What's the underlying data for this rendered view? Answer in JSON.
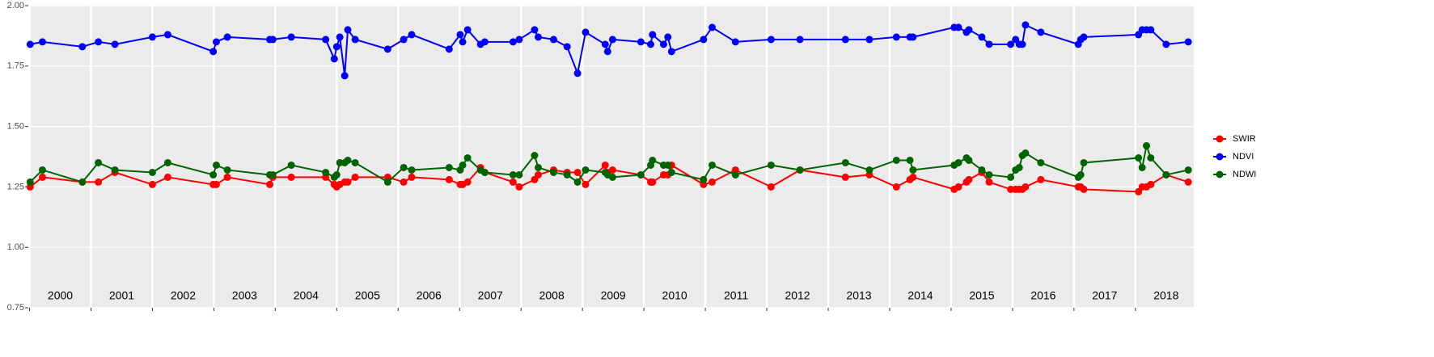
{
  "chart_data": {
    "type": "line",
    "x": [
      2000.01,
      2000.21,
      2000.86,
      2001.12,
      2001.39,
      2002.0,
      2002.25,
      2002.99,
      2003.04,
      2003.22,
      2003.91,
      2003.96,
      2004.26,
      2004.82,
      2004.96,
      2005.0,
      2005.05,
      2005.13,
      2005.18,
      2005.3,
      2005.83,
      2006.09,
      2006.22,
      2006.83,
      2007.01,
      2007.05,
      2007.13,
      2007.34,
      2007.41,
      2007.87,
      2007.97,
      2008.22,
      2008.28,
      2008.53,
      2008.75,
      2008.92,
      2009.05,
      2009.37,
      2009.41,
      2009.49,
      2009.95,
      2010.11,
      2010.14,
      2010.32,
      2010.39,
      2010.45,
      2010.97,
      2011.11,
      2011.49,
      2012.07,
      2012.54,
      2013.28,
      2013.67,
      2014.11,
      2014.33,
      2014.38,
      2015.05,
      2015.12,
      2015.25,
      2015.29,
      2015.5,
      2015.62,
      2015.97,
      2016.05,
      2016.11,
      2016.16,
      2016.21,
      2016.46,
      2017.07,
      2017.11,
      2017.16,
      2018.05,
      2018.11,
      2018.18,
      2018.25,
      2018.5,
      2018.86
    ],
    "series": [
      {
        "name": "SWIR",
        "color": "#ff0000",
        "values": [
          1.25,
          1.29,
          1.27,
          1.27,
          1.31,
          1.26,
          1.29,
          1.26,
          1.26,
          1.29,
          1.26,
          1.29,
          1.29,
          1.29,
          1.26,
          1.25,
          1.26,
          1.27,
          1.27,
          1.29,
          1.29,
          1.27,
          1.29,
          1.28,
          1.26,
          1.26,
          1.27,
          1.33,
          1.31,
          1.27,
          1.25,
          1.28,
          1.3,
          1.32,
          1.31,
          1.31,
          1.26,
          1.34,
          1.31,
          1.32,
          1.3,
          1.27,
          1.27,
          1.3,
          1.3,
          1.34,
          1.26,
          1.27,
          1.32,
          1.25,
          1.32,
          1.29,
          1.3,
          1.25,
          1.28,
          1.29,
          1.24,
          1.25,
          1.27,
          1.28,
          1.31,
          1.27,
          1.24,
          1.24,
          1.24,
          1.24,
          1.25,
          1.28,
          1.25,
          1.25,
          1.24,
          1.23,
          1.25,
          1.25,
          1.26,
          1.3,
          1.27
        ]
      },
      {
        "name": "NDVI",
        "color": "#0000ff",
        "values": [
          1.84,
          1.85,
          1.83,
          1.85,
          1.84,
          1.87,
          1.88,
          1.81,
          1.85,
          1.87,
          1.86,
          1.86,
          1.87,
          1.86,
          1.78,
          1.83,
          1.87,
          1.71,
          1.9,
          1.86,
          1.82,
          1.86,
          1.88,
          1.82,
          1.88,
          1.85,
          1.9,
          1.84,
          1.85,
          1.85,
          1.86,
          1.9,
          1.87,
          1.86,
          1.83,
          1.72,
          1.89,
          1.84,
          1.81,
          1.86,
          1.85,
          1.84,
          1.88,
          1.84,
          1.87,
          1.81,
          1.86,
          1.91,
          1.85,
          1.86,
          1.86,
          1.86,
          1.86,
          1.87,
          1.87,
          1.87,
          1.91,
          1.91,
          1.89,
          1.9,
          1.87,
          1.84,
          1.84,
          1.86,
          1.84,
          1.84,
          1.92,
          1.89,
          1.84,
          1.86,
          1.87,
          1.88,
          1.9,
          1.9,
          1.9,
          1.84,
          1.85
        ]
      },
      {
        "name": "NDWI",
        "color": "#006400",
        "values": [
          1.27,
          1.32,
          1.27,
          1.35,
          1.32,
          1.31,
          1.35,
          1.3,
          1.34,
          1.32,
          1.3,
          1.3,
          1.34,
          1.31,
          1.29,
          1.3,
          1.35,
          1.35,
          1.36,
          1.35,
          1.27,
          1.33,
          1.32,
          1.33,
          1.32,
          1.34,
          1.37,
          1.32,
          1.31,
          1.3,
          1.3,
          1.38,
          1.33,
          1.31,
          1.3,
          1.27,
          1.32,
          1.31,
          1.3,
          1.29,
          1.3,
          1.34,
          1.36,
          1.34,
          1.34,
          1.31,
          1.28,
          1.34,
          1.3,
          1.34,
          1.32,
          1.35,
          1.32,
          1.36,
          1.36,
          1.32,
          1.34,
          1.35,
          1.37,
          1.36,
          1.32,
          1.3,
          1.29,
          1.32,
          1.33,
          1.38,
          1.39,
          1.35,
          1.29,
          1.3,
          1.35,
          1.37,
          1.33,
          1.42,
          1.37,
          1.3,
          1.32
        ]
      }
    ],
    "xlim": [
      1999.98,
      2018.95
    ],
    "xticks": [
      2000,
      2001,
      2002,
      2003,
      2004,
      2005,
      2006,
      2007,
      2008,
      2009,
      2010,
      2011,
      2012,
      2013,
      2014,
      2015,
      2016,
      2017,
      2018
    ],
    "ylim": [
      0.75,
      2.0
    ],
    "yticks": [
      {
        "value": 0.75,
        "label": "0.75"
      },
      {
        "value": 1.0,
        "label": "1.00"
      },
      {
        "value": 1.25,
        "label": "1.25"
      },
      {
        "value": 1.5,
        "label": "1.50"
      },
      {
        "value": 1.75,
        "label": "1.75"
      },
      {
        "value": 2.0,
        "label": "2.00"
      }
    ],
    "grid": true,
    "legend": "right"
  }
}
